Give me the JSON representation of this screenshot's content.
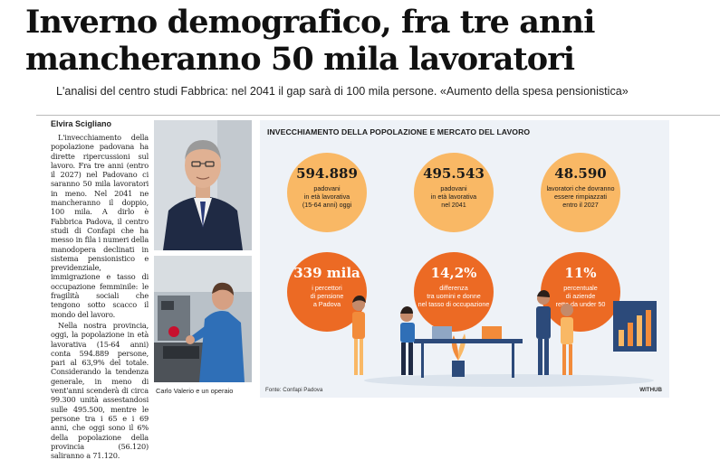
{
  "headline": {
    "line1": "Inverno demografico, fra tre anni",
    "line2": "mancheranno 50 mila lavoratori"
  },
  "subhead": "L'analisi del centro studi Fabbrica: nel 2041 il gap sarà di 100 mila persone. «Aumento della spesa pensionistica»",
  "byline": "Elvira Scigliano",
  "article": [
    "L'invecchiamento della popolazione padovana ha dirette ripercussioni sul lavoro. Fra tre anni (entro il 2027) nel Padovano ci saranno 50 mila lavoratori in meno. Nel 2041 ne mancheranno il doppio, 100 mila. A dirlo è Fabbrica Padova, il centro studi di Confapi che ha messo in fila i numeri della manodopera declinati in sistema pensionistico e previdenziale, immigrazione e tasso di occupazione femminile: le fragilità sociali che tengono sotto scacco il mondo del lavoro.",
    "Nella nostra provincia, oggi, la popolazione in età lavorativa (15-64 anni) conta 594.889 persone, pari al 63,9% del totale. Considerando la tendenza generale, in meno di vent'anni scenderà di circa 99.300 unità assestandosi sulle 495.500, mentre le persone tra i 65 e i 69 anni, che oggi sono il 6% della popolazione della provincia (56.120) saliranno a 71.120."
  ],
  "photo_caption": "Carlo Valerio e un operaio",
  "infographic": {
    "title": "INVECCHIAMENTO DELLA POPOLAZIONE E MERCATO DEL LAVORO",
    "stats": [
      {
        "value": "594.889",
        "desc_lines": [
          "padovani",
          "in età lavorativa",
          "(15-64 anni) oggi"
        ]
      },
      {
        "value": "495.543",
        "desc_lines": [
          "padovani",
          "in età lavorativa",
          "nel 2041"
        ]
      },
      {
        "value": "48.590",
        "desc_lines": [
          "lavoratori che dovranno",
          "essere rimpiazzati",
          "entro il 2027"
        ]
      },
      {
        "value": "339 mila",
        "desc_lines": [
          "i percettori",
          "di pensione",
          "a Padova"
        ]
      },
      {
        "value": "14,2%",
        "desc_lines": [
          "differenza",
          "tra uomini e donne",
          "nel tasso di occupazione"
        ]
      },
      {
        "value": "11%",
        "desc_lines": [
          "percentuale",
          "di aziende",
          "rette da under 50"
        ]
      }
    ],
    "source": "Fonte: Confapi Padova",
    "credit": "WITHUB"
  },
  "colors": {
    "circle_light": "#f9b865",
    "circle_dark": "#ec6a24",
    "infobox_bg": "#eef2f7"
  }
}
